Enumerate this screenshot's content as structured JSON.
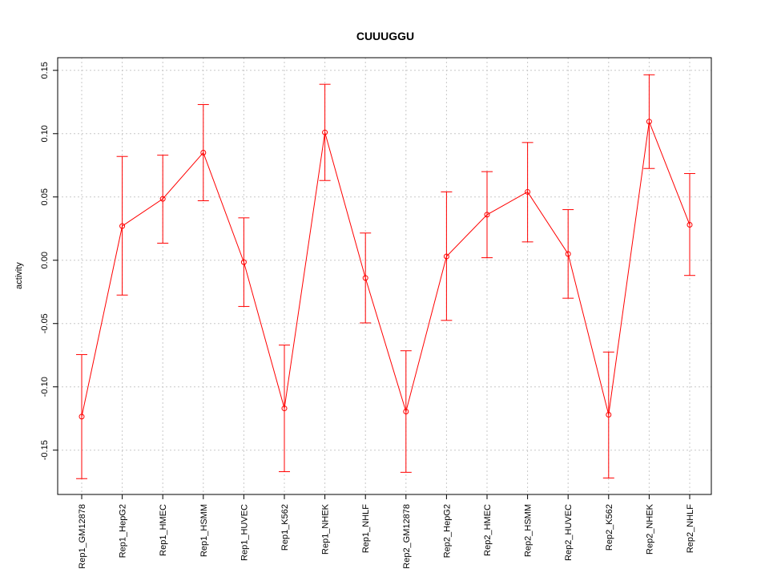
{
  "chart_data": {
    "type": "line",
    "title": "CUUUGGU",
    "xlabel": "",
    "ylabel": "activity",
    "ylim": [
      -0.185,
      0.16
    ],
    "yticks": [
      -0.15,
      -0.1,
      -0.05,
      0.0,
      0.05,
      0.1,
      0.15
    ],
    "ytick_labels": [
      "-0.15",
      "-0.10",
      "-0.05",
      "0.00",
      "0.05",
      "0.10",
      "0.15"
    ],
    "grid": true,
    "color": "#ff0000",
    "categories": [
      "Rep1_GM12878",
      "Rep1_HepG2",
      "Rep1_HMEC",
      "Rep1_HSMM",
      "Rep1_HUVEC",
      "Rep1_K562",
      "Rep1_NHEK",
      "Rep1_NHLF",
      "Rep2_GM12878",
      "Rep2_HepG2",
      "Rep2_HMEC",
      "Rep2_HSMM",
      "Rep2_HUVEC",
      "Rep2_K562",
      "Rep2_NHEK",
      "Rep2_NHLF"
    ],
    "series": [
      {
        "name": "CUUUGGU",
        "values": [
          -0.1235,
          0.027,
          0.0485,
          0.085,
          -0.0015,
          -0.117,
          0.101,
          -0.014,
          -0.1195,
          0.003,
          0.036,
          0.054,
          0.005,
          -0.122,
          0.1095,
          0.028
        ],
        "lower": [
          -0.1725,
          -0.0275,
          0.0135,
          0.047,
          -0.0365,
          -0.167,
          0.063,
          -0.0495,
          -0.1675,
          -0.0475,
          0.002,
          0.0145,
          -0.03,
          -0.172,
          0.0725,
          -0.012
        ],
        "upper": [
          -0.0745,
          0.082,
          0.083,
          0.123,
          0.0335,
          -0.067,
          0.139,
          0.0215,
          -0.0715,
          0.054,
          0.07,
          0.093,
          0.04,
          -0.0725,
          0.1465,
          0.0685
        ]
      }
    ]
  }
}
